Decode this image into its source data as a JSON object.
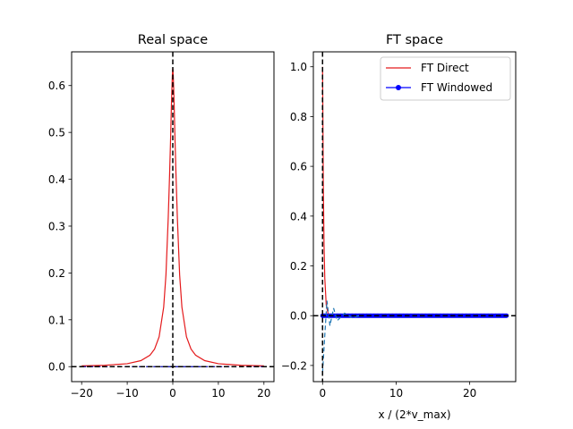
{
  "chart_data": [
    {
      "type": "line",
      "title": "Real space",
      "xlabel": "",
      "ylabel": "",
      "xlim": [
        -22.2,
        22.2
      ],
      "ylim": [
        -0.032,
        0.672
      ],
      "xticks": [
        -20,
        -10,
        0,
        10,
        20
      ],
      "xtick_labels": [
        "−20",
        "−10",
        "0",
        "10",
        "20"
      ],
      "yticks": [
        0.0,
        0.1,
        0.2,
        0.3,
        0.4,
        0.5,
        0.6
      ],
      "ytick_labels": [
        "0.0",
        "0.1",
        "0.2",
        "0.3",
        "0.4",
        "0.5",
        "0.6"
      ],
      "grid": false,
      "vline_x": 0,
      "hline_y": 0,
      "series": [
        {
          "color": "#e41a1c",
          "style": "solid",
          "x": [
            -20,
            -15,
            -10,
            -7,
            -5,
            -4,
            -3,
            -2,
            -1.5,
            -1,
            -0.7,
            -0.5,
            -0.3,
            -0.2,
            -0.1,
            0,
            0.1,
            0.2,
            0.3,
            0.5,
            0.7,
            1,
            1.5,
            2,
            3,
            4,
            5,
            7,
            10,
            15,
            20
          ],
          "y": [
            0.0016,
            0.0028,
            0.0063,
            0.0128,
            0.0245,
            0.0374,
            0.0637,
            0.127,
            0.196,
            0.318,
            0.411,
            0.48,
            0.559,
            0.592,
            0.621,
            0.637,
            0.621,
            0.592,
            0.559,
            0.48,
            0.411,
            0.318,
            0.196,
            0.127,
            0.0637,
            0.0374,
            0.0245,
            0.0128,
            0.0063,
            0.0028,
            0.0016
          ]
        },
        {
          "color": "#0000aa",
          "style": "dashed",
          "x": [
            -20,
            20
          ],
          "y": [
            0.0,
            0.0
          ]
        }
      ]
    },
    {
      "type": "line",
      "title": "FT space",
      "xlabel": "x / (2*v_max)",
      "ylabel": "",
      "xlim": [
        -1.25,
        26.25
      ],
      "ylim": [
        -0.265,
        1.06
      ],
      "xticks": [
        0,
        10,
        20
      ],
      "xtick_labels": [
        "0",
        "10",
        "20"
      ],
      "yticks": [
        -0.2,
        0.0,
        0.2,
        0.4,
        0.6,
        0.8,
        1.0
      ],
      "ytick_labels": [
        "−0.2",
        "0.0",
        "0.2",
        "0.4",
        "0.6",
        "0.8",
        "1.0"
      ],
      "grid": false,
      "vline_x": 0,
      "hline_y": 0,
      "legend": {
        "placement": "upper right",
        "entries": [
          {
            "label": "FT Direct",
            "color": "#e41a1c",
            "marker": "none"
          },
          {
            "label": "FT Windowed",
            "color": "#0000ff",
            "marker": "circle"
          }
        ]
      },
      "series": [
        {
          "name": "FT Direct",
          "color": "#e41a1c",
          "x": [
            0,
            0.1,
            0.2,
            0.3,
            0.5,
            0.75,
            1,
            1.5,
            2,
            3,
            4,
            6,
            10,
            15,
            20,
            25
          ],
          "y": [
            1.0,
            0.533,
            0.285,
            0.152,
            0.043,
            0.009,
            0.002,
            0.0,
            0.0,
            0.0,
            0.0,
            0.0,
            0.0,
            0.0,
            0.0,
            0.0
          ]
        },
        {
          "name": "FT Windowed",
          "color": "#0000ff",
          "x_start": 0,
          "x_end": 25,
          "y": 0.0
        },
        {
          "color": "#1f77b4",
          "style": "dashed",
          "x": [
            0,
            0.3,
            0.6,
            1,
            1.5,
            2,
            3,
            4,
            5
          ],
          "y": [
            -0.23,
            -0.08,
            0.06,
            -0.04,
            0.03,
            -0.02,
            0.01,
            -0.008,
            0.0
          ]
        }
      ]
    }
  ]
}
